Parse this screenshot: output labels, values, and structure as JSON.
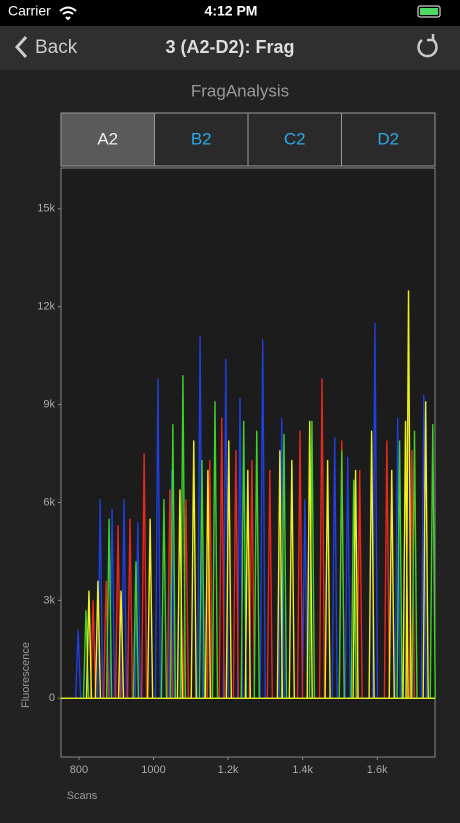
{
  "status_bar": {
    "carrier": "Carrier",
    "time": "4:12 PM"
  },
  "nav": {
    "back": "Back",
    "title": "3 (A2-D2): Frag"
  },
  "header": "FragAnalysis",
  "tabs": [
    "A2",
    "B2",
    "C2",
    "D2"
  ],
  "chart_data": {
    "type": "line",
    "x_label": "Scans",
    "y_label": "Fluorescence",
    "xlim": [
      752,
      1755
    ],
    "ylim": [
      -1800,
      16250
    ],
    "xticks": [
      800,
      1000,
      {
        "value": 1200,
        "label": "1.2k"
      },
      {
        "value": 1400,
        "label": "1.4k"
      },
      {
        "value": 1600,
        "label": "1.6k"
      }
    ],
    "yticks": [
      0,
      {
        "value": 3000,
        "label": "3k"
      },
      {
        "value": 6000,
        "label": "6k"
      },
      {
        "value": 9000,
        "label": "9k"
      },
      {
        "value": 12000,
        "label": "12k"
      },
      {
        "value": 15000,
        "label": "15k"
      }
    ],
    "series": [
      {
        "color": "#1f3fe0",
        "x": [
          798,
          857,
          889,
          921,
          958,
          1012,
          1049,
          1125,
          1194,
          1232,
          1293,
          1344,
          1406,
          1486,
          1521,
          1594,
          1655,
          1725
        ],
        "values": [
          2100,
          6100,
          5800,
          6100,
          5400,
          9800,
          7000,
          11100,
          10400,
          9200,
          11000,
          8600,
          6100,
          8000,
          7400,
          11500,
          8600,
          9300
        ]
      },
      {
        "color": "#e8281e",
        "x": [
          838,
          873,
          905,
          937,
          975,
          1044,
          1087,
          1151,
          1183,
          1221,
          1264,
          1312,
          1393,
          1452,
          1505,
          1553,
          1626,
          1693
        ],
        "values": [
          3000,
          3600,
          5300,
          5500,
          7500,
          6400,
          6100,
          7300,
          8600,
          7600,
          7300,
          7000,
          8200,
          9800,
          7900,
          7000,
          7900,
          7600
        ]
      },
      {
        "color": "#3ed12a",
        "x": [
          819,
          881,
          953,
          1028,
          1052,
          1079,
          1130,
          1165,
          1242,
          1277,
          1350,
          1425,
          1505,
          1537,
          1660,
          1700,
          1749
        ],
        "values": [
          2700,
          5500,
          4200,
          6100,
          8400,
          9900,
          7300,
          9100,
          8500,
          8200,
          8100,
          8500,
          7600,
          6700,
          7900,
          8200,
          8400
        ]
      },
      {
        "color": "#f0f020",
        "x": [
          827,
          851,
          913,
          991,
          1071,
          1108,
          1146,
          1202,
          1253,
          1339,
          1371,
          1419,
          1467,
          1542,
          1585,
          1639,
          1676,
          1684,
          1730
        ],
        "values": [
          3300,
          3600,
          3300,
          5500,
          6400,
          7900,
          7000,
          7900,
          7000,
          7600,
          7300,
          8500,
          7300,
          7000,
          8200,
          7000,
          8500,
          12500,
          9100
        ]
      }
    ]
  }
}
